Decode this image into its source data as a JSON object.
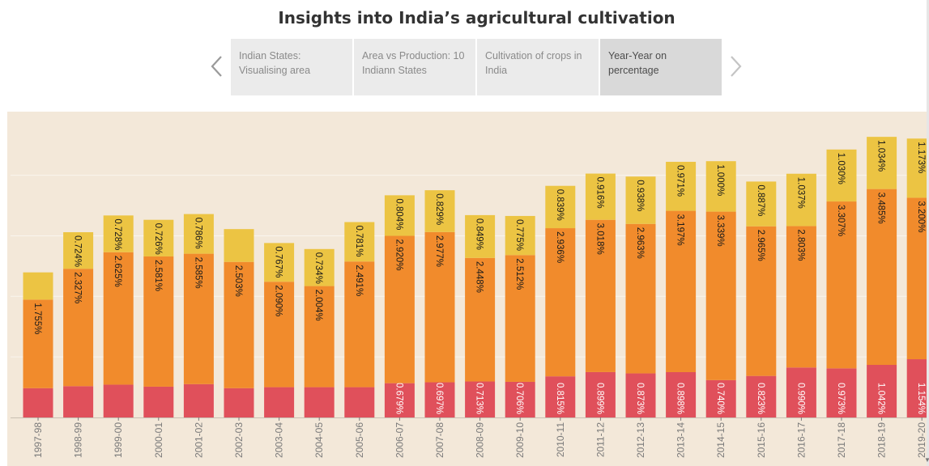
{
  "page": {
    "title": "Insights into India’s agricultural cultivation"
  },
  "nav": {
    "prev_icon": "chevron-left-icon",
    "next_icon": "chevron-right-icon",
    "tabs": [
      {
        "label_line1": "Indian States:",
        "label_line2": "Visualising area",
        "active": false
      },
      {
        "label_line1": "Area vs Production: 10",
        "label_line2": "Indiann States",
        "active": false
      },
      {
        "label_line1": "Cultivation of crops in",
        "label_line2": "India",
        "active": false
      },
      {
        "label_line1": "Year-Year on",
        "label_line2": "percentage",
        "active": true
      }
    ]
  },
  "colors": {
    "bottom": "#e0505b",
    "middle": "#f18b2c",
    "top": "#ecc443",
    "background": "#f3e8d9",
    "label": "#1a1a1a",
    "label_light": "#ffffff",
    "tick": "#7a7a7a"
  },
  "chart_data": {
    "type": "bar",
    "stacked": true,
    "orientation": "vertical",
    "title": "",
    "xlabel": "",
    "ylabel": "",
    "grid": true,
    "categories": [
      "1997-98",
      "1998-99",
      "1999-00",
      "2000-01",
      "2001-02",
      "2002-03",
      "2003-04",
      "2004-05",
      "2005-06",
      "2006-07",
      "2007-08",
      "2008-09",
      "2009-10",
      "2010-11",
      "2011-12",
      "2012-13",
      "2013-14",
      "2014-15",
      "2015-16",
      "2016-17",
      "2017-18",
      "2018-19",
      "2019-20"
    ],
    "series": [
      {
        "color": "#e0505b",
        "values": [
          0.58,
          0.62,
          0.65,
          0.61,
          0.66,
          0.58,
          0.6,
          0.6,
          0.6,
          0.679,
          0.697,
          0.713,
          0.706,
          0.815,
          0.899,
          0.873,
          0.898,
          0.74,
          0.823,
          0.99,
          0.973,
          1.042,
          1.154
        ],
        "labels": [
          "",
          "",
          "",
          "",
          "",
          "",
          "",
          "",
          "",
          "0.679%",
          "0.697%",
          "0.713%",
          "0.706%",
          "0.815%",
          "0.899%",
          "0.873%",
          "0.898%",
          "0.740%",
          "0.823%",
          "0.990%",
          "0.973%",
          "1.042%",
          "1.154%"
        ]
      },
      {
        "color": "#f18b2c",
        "values": [
          1.755,
          2.327,
          2.625,
          2.581,
          2.585,
          2.503,
          2.09,
          2.004,
          2.491,
          2.92,
          2.977,
          2.448,
          2.512,
          2.936,
          3.018,
          2.963,
          3.197,
          3.339,
          2.965,
          2.803,
          3.307,
          3.485,
          3.2
        ],
        "labels": [
          "1.755%",
          "2.327%",
          "2.625%",
          "2.581%",
          "2.585%",
          "2.503%",
          "2.090%",
          "2.004%",
          "2.491%",
          "2.920%",
          "2.977%",
          "2.448%",
          "2.512%",
          "2.936%",
          "3.018%",
          "2.963%",
          "3.197%",
          "3.339%",
          "2.965%",
          "2.803%",
          "3.307%",
          "3.485%",
          "3.200%"
        ]
      },
      {
        "color": "#ecc443",
        "values": [
          0.54,
          0.724,
          0.728,
          0.726,
          0.786,
          0.65,
          0.767,
          0.734,
          0.781,
          0.804,
          0.829,
          0.849,
          0.775,
          0.839,
          0.916,
          0.938,
          0.971,
          1.0,
          0.887,
          1.037,
          1.03,
          1.034,
          1.173
        ],
        "labels": [
          "",
          "0.724%",
          "0.728%",
          "0.726%",
          "0.786%",
          "",
          "0.767%",
          "0.734%",
          "0.781%",
          "0.804%",
          "0.829%",
          "0.849%",
          "0.775%",
          "0.839%",
          "0.916%",
          "0.938%",
          "0.971%",
          "1.000%",
          "0.887%",
          "1.037%",
          "1.030%",
          "1.034%",
          "1.173%"
        ]
      }
    ],
    "ylim": [
      0,
      5.9
    ]
  }
}
